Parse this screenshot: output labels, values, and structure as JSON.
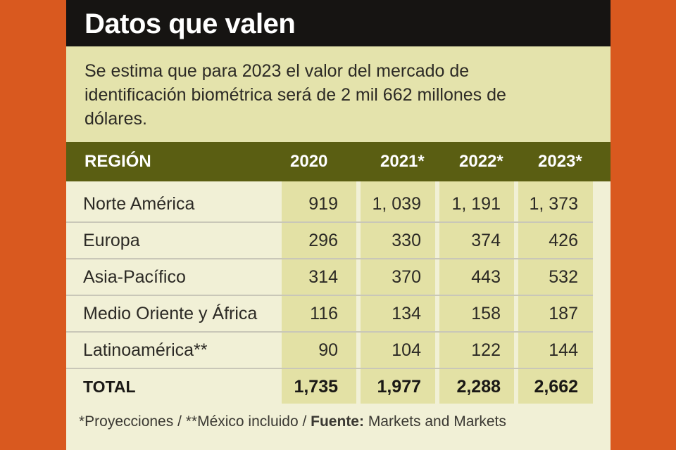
{
  "title": "Datos que valen",
  "intro": "Se estima que para 2023 el valor del mercado de identificación biométrica será de 2 mil 662 millones de dólares.",
  "table": {
    "headers": [
      "REGIÓN",
      "2020",
      "2021*",
      "2022*",
      "2023*"
    ],
    "rows": [
      {
        "region": "Norte América",
        "values": [
          "919",
          "1, 039",
          "1, 191",
          "1, 373"
        ]
      },
      {
        "region": "Europa",
        "values": [
          "296",
          "330",
          "374",
          "426"
        ]
      },
      {
        "region": "Asia-Pacífico",
        "values": [
          "314",
          "370",
          "443",
          "532"
        ]
      },
      {
        "region": "Medio Oriente y África",
        "values": [
          "116",
          "134",
          "158",
          "187"
        ]
      },
      {
        "region": "Latinoamérica**",
        "values": [
          "90",
          "104",
          "122",
          "144"
        ]
      }
    ],
    "total": {
      "label": "TOTAL",
      "values": [
        "1,735",
        "1,977",
        "2,288",
        "2,662"
      ]
    }
  },
  "footnote": {
    "notes": "*Proyecciones / **México incluido / ",
    "source_label": "Fuente:",
    "source": " Markets and Markets"
  },
  "colors": {
    "background": "#d9591f",
    "title_bar": "#161412",
    "intro_bg": "#e4e3ac",
    "header_bg": "#5a5e12",
    "column_bg": "#e3e1a5",
    "body_bg": "#f1f0d6"
  }
}
